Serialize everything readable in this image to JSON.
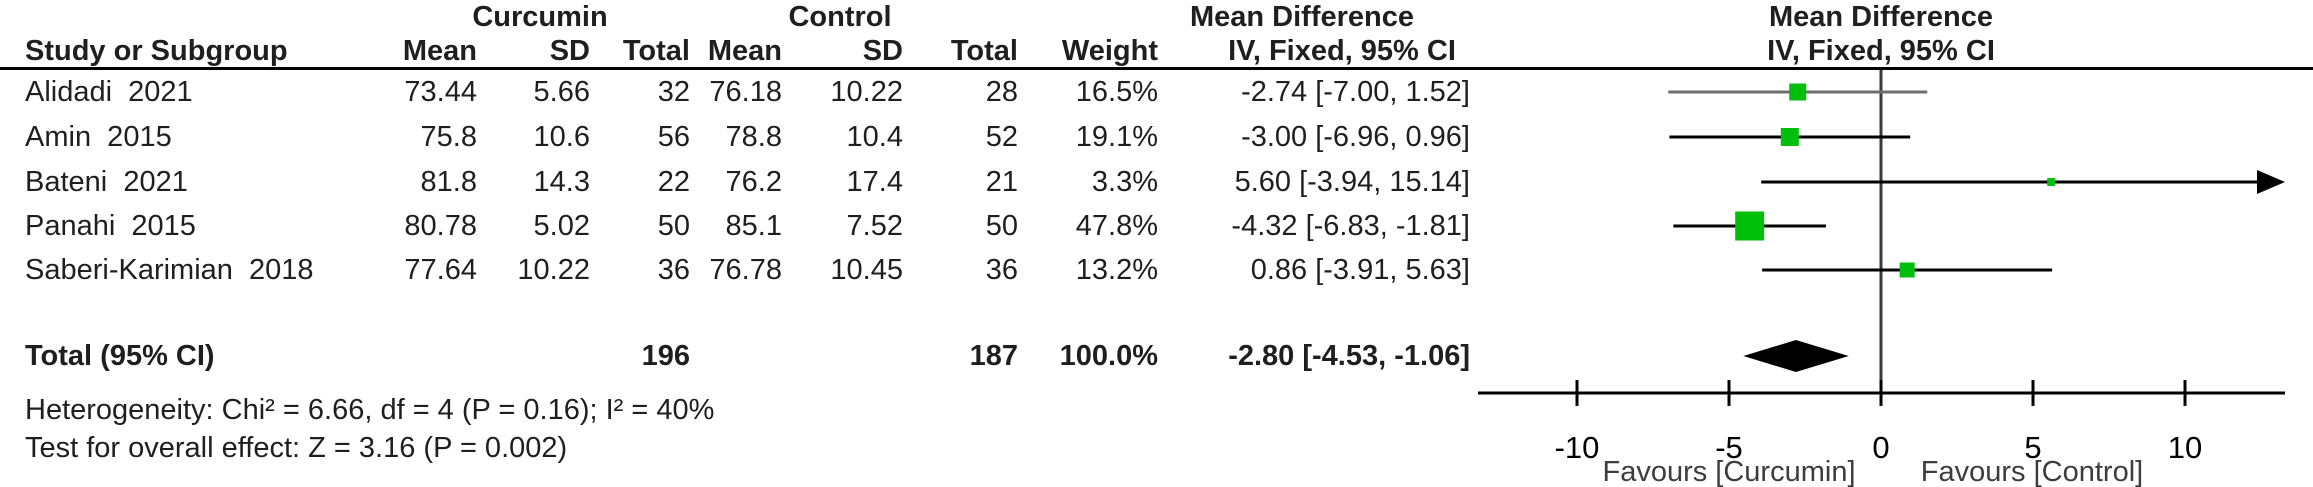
{
  "header": {
    "group1": "Curcumin",
    "group2": "Control",
    "md_text_col": "Mean Difference",
    "md_plot_col": "Mean Difference",
    "study_col": "Study or Subgroup",
    "mean_col": "Mean",
    "sd_col": "SD",
    "total_col": "Total",
    "weight_col": "Weight",
    "iv_text_col": "IV, Fixed, 95% CI",
    "iv_plot_col": "IV, Fixed, 95% CI"
  },
  "colors": {
    "square_green": "#00bf0c",
    "diamond_black": "#000000",
    "axis_black": "#000000",
    "zero_line_gray": "#3a3a3a",
    "row1_ci_gray": "#6e6e6e",
    "ci_black": "#000000",
    "favours_gray": "#3d3d3d",
    "text_dark": "#1f1f1f"
  },
  "chart_data": {
    "type": "forest",
    "effect_measure": "Mean Difference",
    "model": "IV, Fixed, 95% CI",
    "studies": [
      {
        "name": "Alidadi  2021",
        "exp_mean": "73.44",
        "exp_sd": "5.66",
        "exp_total": "32",
        "ctl_mean": "76.18",
        "ctl_sd": "10.22",
        "ctl_total": "28",
        "weight": "16.5%",
        "weight_pct": 16.5,
        "md": -2.74,
        "ci_low": -7.0,
        "ci_high": 1.52,
        "ci_label": "-2.74 [-7.00, 1.52]"
      },
      {
        "name": "Amin  2015",
        "exp_mean": "75.8",
        "exp_sd": "10.6",
        "exp_total": "56",
        "ctl_mean": "78.8",
        "ctl_sd": "10.4",
        "ctl_total": "52",
        "weight": "19.1%",
        "weight_pct": 19.1,
        "md": -3.0,
        "ci_low": -6.96,
        "ci_high": 0.96,
        "ci_label": "-3.00 [-6.96, 0.96]"
      },
      {
        "name": "Bateni  2021",
        "exp_mean": "81.8",
        "exp_sd": "14.3",
        "exp_total": "22",
        "ctl_mean": "76.2",
        "ctl_sd": "17.4",
        "ctl_total": "21",
        "weight": "3.3%",
        "weight_pct": 3.3,
        "md": 5.6,
        "ci_low": -3.94,
        "ci_high": 15.14,
        "ci_label": "5.60 [-3.94, 15.14]"
      },
      {
        "name": "Panahi  2015",
        "exp_mean": "80.78",
        "exp_sd": "5.02",
        "exp_total": "50",
        "ctl_mean": "85.1",
        "ctl_sd": "7.52",
        "ctl_total": "50",
        "weight": "47.8%",
        "weight_pct": 47.8,
        "md": -4.32,
        "ci_low": -6.83,
        "ci_high": -1.81,
        "ci_label": "-4.32 [-6.83, -1.81]"
      },
      {
        "name": "Saberi-Karimian  2018",
        "exp_mean": "77.64",
        "exp_sd": "10.22",
        "exp_total": "36",
        "ctl_mean": "76.78",
        "ctl_sd": "10.45",
        "ctl_total": "36",
        "weight": "13.2%",
        "weight_pct": 13.2,
        "md": 0.86,
        "ci_low": -3.91,
        "ci_high": 5.63,
        "ci_label": "0.86 [-3.91, 5.63]"
      }
    ],
    "total": {
      "label": "Total (95% CI)",
      "exp_total": "196",
      "ctl_total": "187",
      "weight": "100.0%",
      "ci_label": "-2.80 [-4.53, -1.06]",
      "md": -2.8,
      "ci_low": -4.53,
      "ci_high": -1.06
    },
    "heterogeneity": "Heterogeneity: Chi² = 6.66, df = 4 (P = 0.16); I² = 40%",
    "overall_effect": "Test for overall effect: Z = 3.16 (P = 0.002)",
    "axis": {
      "ticks": [
        -10,
        -5,
        0,
        5,
        10
      ],
      "tick_labels": [
        "-10",
        "-5",
        "0",
        "5",
        "10"
      ],
      "xmin": -13.25,
      "xmax": 13.3,
      "favours_left": "Favours [Curcumin]",
      "favours_right": "Favours [Control]"
    }
  }
}
